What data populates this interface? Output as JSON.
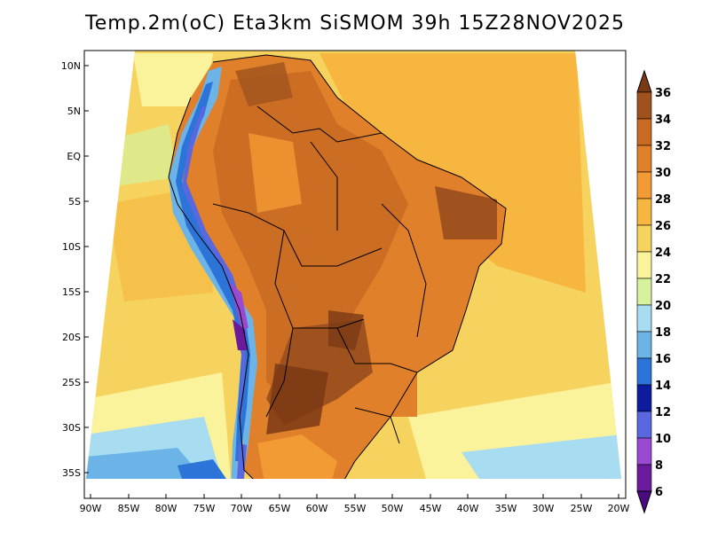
{
  "title": "Temp.2m(oC) Eta3km SiSMOM 39h 15Z28NOV2025",
  "map": {
    "y_ticks": [
      "10N",
      "5N",
      "EQ",
      "5S",
      "10S",
      "15S",
      "20S",
      "25S",
      "30S",
      "35S"
    ],
    "x_ticks": [
      "90W",
      "85W",
      "80W",
      "75W",
      "70W",
      "65W",
      "60W",
      "55W",
      "50W",
      "45W",
      "40W",
      "35W",
      "30W",
      "25W",
      "20W"
    ]
  },
  "colorbar": {
    "labels": [
      "36",
      "34",
      "32",
      "30",
      "28",
      "26",
      "24",
      "22",
      "20",
      "18",
      "16",
      "14",
      "12",
      "10",
      "8",
      "6"
    ],
    "colors": [
      "#7a3a14",
      "#a0521e",
      "#c96b22",
      "#e0802a",
      "#f29a33",
      "#f7b640",
      "#f6d35e",
      "#fbf29c",
      "#d6f29c",
      "#a8dcf0",
      "#6cb4e8",
      "#2c74d8",
      "#0c1c9c",
      "#5a68e0",
      "#9a4ad0",
      "#6a1a9a",
      "#4a0a80"
    ]
  }
}
